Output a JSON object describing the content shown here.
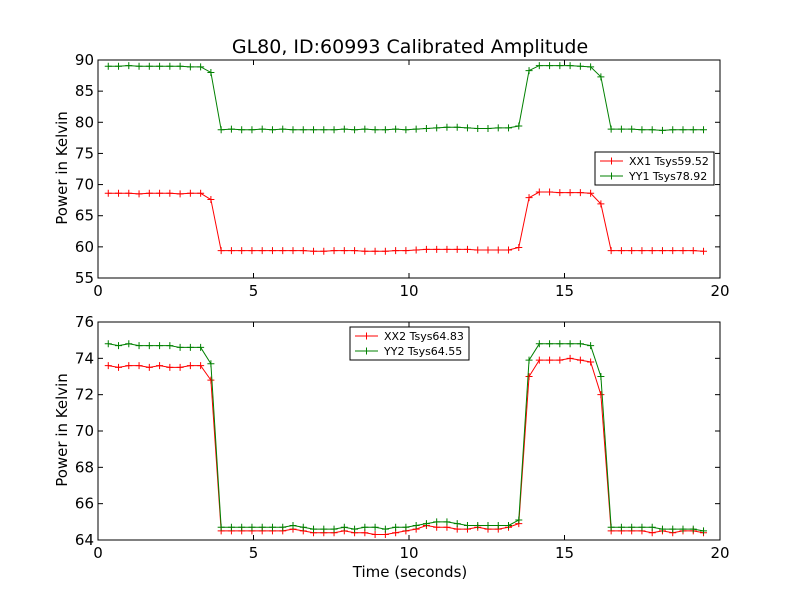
{
  "chart_data": [
    {
      "type": "line",
      "title": "GL80, ID:60993 Calibrated Amplitude",
      "xlabel": "",
      "ylabel": "Power in Kelvin",
      "xlim": [
        0,
        20
      ],
      "ylim": [
        55,
        90
      ],
      "xticks": [
        "0",
        "5",
        "10",
        "15",
        "20"
      ],
      "yticks": [
        "55",
        "60",
        "65",
        "70",
        "75",
        "80",
        "85",
        "90"
      ],
      "grid": false,
      "legend_position": "right",
      "x": [
        0.33,
        0.66,
        0.99,
        1.32,
        1.65,
        1.98,
        2.31,
        2.64,
        2.97,
        3.3,
        3.63,
        3.96,
        4.29,
        4.62,
        4.95,
        5.28,
        5.61,
        5.94,
        6.27,
        6.6,
        6.93,
        7.26,
        7.59,
        7.92,
        8.25,
        8.58,
        8.91,
        9.24,
        9.57,
        9.9,
        10.23,
        10.56,
        10.89,
        11.22,
        11.55,
        11.88,
        12.21,
        12.54,
        12.87,
        13.2,
        13.53,
        13.86,
        14.19,
        14.52,
        14.85,
        15.18,
        15.51,
        15.84,
        16.17,
        16.5,
        16.83,
        17.16,
        17.49,
        17.82,
        18.15,
        18.48,
        18.81,
        19.14,
        19.47
      ],
      "series": [
        {
          "name": "XX1 Tsys59.52",
          "color": "#ff0000",
          "values": [
            68.6,
            68.6,
            68.6,
            68.5,
            68.6,
            68.6,
            68.6,
            68.5,
            68.6,
            68.6,
            67.6,
            59.4,
            59.4,
            59.4,
            59.4,
            59.4,
            59.4,
            59.4,
            59.4,
            59.4,
            59.3,
            59.3,
            59.4,
            59.4,
            59.4,
            59.3,
            59.3,
            59.3,
            59.4,
            59.4,
            59.5,
            59.6,
            59.6,
            59.6,
            59.6,
            59.6,
            59.5,
            59.5,
            59.5,
            59.5,
            59.9,
            67.9,
            68.8,
            68.8,
            68.7,
            68.7,
            68.7,
            68.6,
            66.9,
            59.4,
            59.4,
            59.4,
            59.4,
            59.4,
            59.4,
            59.4,
            59.4,
            59.4,
            59.3
          ]
        },
        {
          "name": "YY1 Tsys78.92",
          "color": "#008000",
          "values": [
            89.0,
            89.0,
            89.1,
            89.0,
            89.0,
            89.0,
            89.0,
            89.0,
            88.9,
            88.9,
            88.0,
            78.8,
            78.9,
            78.8,
            78.8,
            78.9,
            78.8,
            78.9,
            78.8,
            78.8,
            78.8,
            78.8,
            78.8,
            78.9,
            78.8,
            78.9,
            78.8,
            78.8,
            78.9,
            78.8,
            78.9,
            79.0,
            79.1,
            79.2,
            79.2,
            79.1,
            79.0,
            79.0,
            79.1,
            79.1,
            79.4,
            88.3,
            89.1,
            89.1,
            89.1,
            89.1,
            89.0,
            88.9,
            87.3,
            78.9,
            78.9,
            78.9,
            78.8,
            78.8,
            78.7,
            78.8,
            78.8,
            78.8,
            78.8
          ]
        }
      ]
    },
    {
      "type": "line",
      "title": "",
      "xlabel": "Time (seconds)",
      "ylabel": "Power in Kelvin",
      "xlim": [
        0,
        20
      ],
      "ylim": [
        64,
        76
      ],
      "xticks": [
        "0",
        "5",
        "10",
        "15",
        "20"
      ],
      "yticks": [
        "64",
        "66",
        "68",
        "70",
        "72",
        "74",
        "76"
      ],
      "grid": false,
      "legend_position": "top-center",
      "x": [
        0.33,
        0.66,
        0.99,
        1.32,
        1.65,
        1.98,
        2.31,
        2.64,
        2.97,
        3.3,
        3.63,
        3.96,
        4.29,
        4.62,
        4.95,
        5.28,
        5.61,
        5.94,
        6.27,
        6.6,
        6.93,
        7.26,
        7.59,
        7.92,
        8.25,
        8.58,
        8.91,
        9.24,
        9.57,
        9.9,
        10.23,
        10.56,
        10.89,
        11.22,
        11.55,
        11.88,
        12.21,
        12.54,
        12.87,
        13.2,
        13.53,
        13.86,
        14.19,
        14.52,
        14.85,
        15.18,
        15.51,
        15.84,
        16.17,
        16.5,
        16.83,
        17.16,
        17.49,
        17.82,
        18.15,
        18.48,
        18.81,
        19.14,
        19.47
      ],
      "series": [
        {
          "name": "XX2 Tsys64.83",
          "color": "#ff0000",
          "values": [
            73.6,
            73.5,
            73.6,
            73.6,
            73.5,
            73.6,
            73.5,
            73.5,
            73.6,
            73.6,
            72.8,
            64.5,
            64.5,
            64.5,
            64.5,
            64.5,
            64.5,
            64.5,
            64.6,
            64.5,
            64.4,
            64.4,
            64.4,
            64.5,
            64.4,
            64.4,
            64.3,
            64.3,
            64.4,
            64.5,
            64.6,
            64.8,
            64.7,
            64.7,
            64.6,
            64.6,
            64.7,
            64.6,
            64.6,
            64.7,
            64.9,
            73.0,
            73.9,
            73.9,
            73.9,
            74.0,
            73.9,
            73.8,
            72.0,
            64.5,
            64.5,
            64.5,
            64.5,
            64.4,
            64.5,
            64.4,
            64.5,
            64.5,
            64.4
          ]
        },
        {
          "name": "YY2 Tsys64.55",
          "color": "#008000",
          "values": [
            74.8,
            74.7,
            74.8,
            74.7,
            74.7,
            74.7,
            74.7,
            74.6,
            74.6,
            74.6,
            73.7,
            64.7,
            64.7,
            64.7,
            64.7,
            64.7,
            64.7,
            64.7,
            64.8,
            64.7,
            64.6,
            64.6,
            64.6,
            64.7,
            64.6,
            64.7,
            64.7,
            64.6,
            64.7,
            64.7,
            64.8,
            64.9,
            65.0,
            65.0,
            64.9,
            64.8,
            64.8,
            64.8,
            64.8,
            64.8,
            65.1,
            73.9,
            74.8,
            74.8,
            74.8,
            74.8,
            74.8,
            74.7,
            73.0,
            64.7,
            64.7,
            64.7,
            64.7,
            64.7,
            64.6,
            64.6,
            64.6,
            64.6,
            64.5
          ]
        }
      ]
    }
  ]
}
